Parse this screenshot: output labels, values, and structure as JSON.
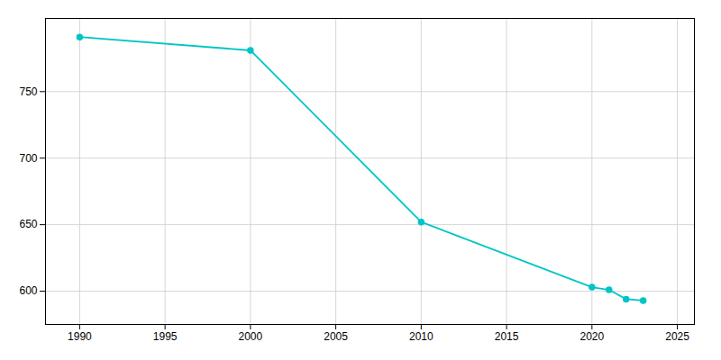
{
  "chart_data": {
    "type": "line",
    "x": [
      1990,
      2000,
      2010,
      2020,
      2021,
      2022,
      2023
    ],
    "values": [
      791,
      781,
      652,
      603,
      601,
      594,
      593
    ],
    "color": "#00C5C5",
    "marker": "circle",
    "xlim": [
      1988,
      2026
    ],
    "ylim": [
      575,
      805
    ],
    "xticks": [
      1990,
      1995,
      2000,
      2005,
      2010,
      2015,
      2020,
      2025
    ],
    "yticks": [
      600,
      650,
      700,
      750
    ],
    "grid": true
  }
}
